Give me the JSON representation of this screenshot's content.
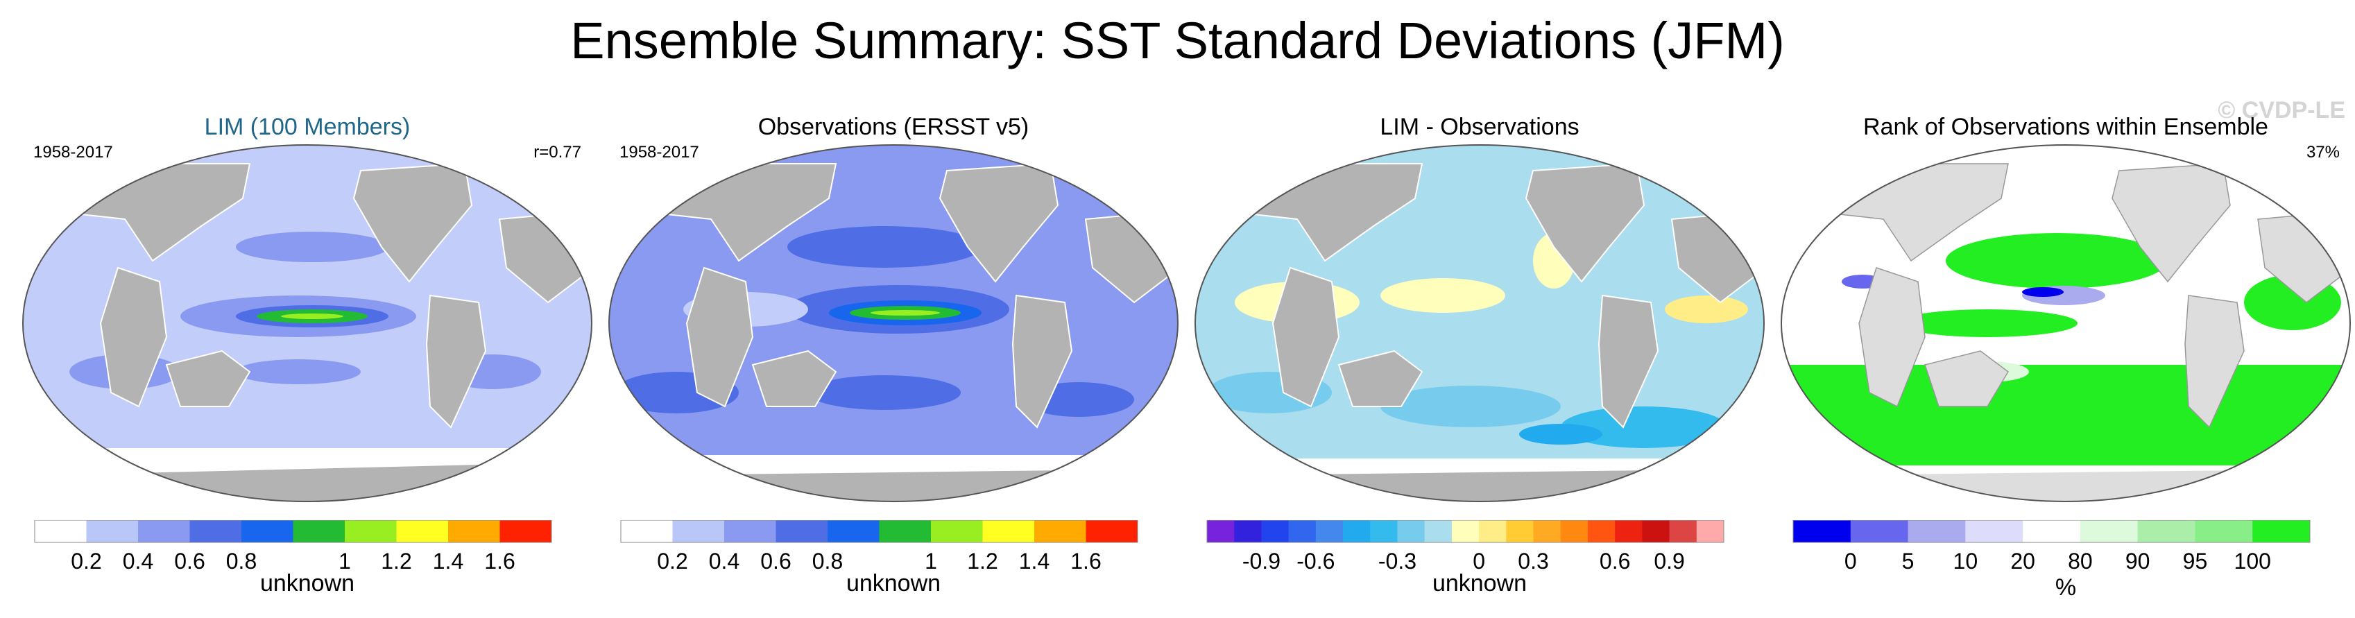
{
  "title": "Ensemble Summary: SST Standard Deviations (JFM)",
  "watermark": "© CVDP-LE",
  "colors": {
    "land": "#b3b3b3",
    "ocean_light": "#c3cdfa"
  },
  "panels": [
    {
      "title": "LIM (100 Members)",
      "left_label": "1958-2017",
      "right_label": "r=0.77",
      "colorbar": {
        "colors": [
          "#ffffff",
          "#b8c6f8",
          "#8a9af0",
          "#4f6ee6",
          "#1866ee",
          "#22bb33",
          "#99ee22",
          "#ffff22",
          "#ffaa00",
          "#ff2200"
        ],
        "ticks": [
          "0.2",
          "0.4",
          "0.6",
          "0.8",
          "1",
          "1.2",
          "1.4",
          "1.6"
        ],
        "label": "unknown"
      }
    },
    {
      "title": "Observations (ERSST v5)",
      "left_label": "1958-2017",
      "right_label": "",
      "colorbar": {
        "colors": [
          "#ffffff",
          "#b8c6f8",
          "#8a9af0",
          "#4f6ee6",
          "#1866ee",
          "#22bb33",
          "#99ee22",
          "#ffff22",
          "#ffaa00",
          "#ff2200"
        ],
        "ticks": [
          "0.2",
          "0.4",
          "0.6",
          "0.8",
          "1",
          "1.2",
          "1.4",
          "1.6"
        ],
        "label": "unknown"
      }
    },
    {
      "title": "LIM - Observations",
      "left_label": "",
      "right_label": "",
      "colorbar": {
        "colors": [
          "#7722dd",
          "#3322dd",
          "#2244ee",
          "#3366ee",
          "#4488ee",
          "#22aaee",
          "#33bbee",
          "#77ccee",
          "#aaddee",
          "#ffffbb",
          "#ffee88",
          "#ffcc33",
          "#ffaa22",
          "#ff8811",
          "#ff5511",
          "#ee2211",
          "#cc1111",
          "#dd4444",
          "#ffaaaa"
        ],
        "ticks": [
          "-0.9",
          "-0.6",
          "-0.3",
          "0",
          "0.3",
          "0.6",
          "0.9"
        ],
        "label": "unknown"
      }
    },
    {
      "title": "Rank of Observations within Ensemble",
      "left_label": "",
      "right_label": "37%",
      "colorbar": {
        "colors": [
          "#0000ee",
          "#6666ee",
          "#aaaaee",
          "#ddddfb",
          "#ffffff",
          "#ddfadd",
          "#aaeeaa",
          "#88ee88",
          "#22ee22"
        ],
        "ticks": [
          "0",
          "5",
          "10",
          "20",
          "80",
          "90",
          "95",
          "100"
        ],
        "label": "%"
      }
    }
  ]
}
